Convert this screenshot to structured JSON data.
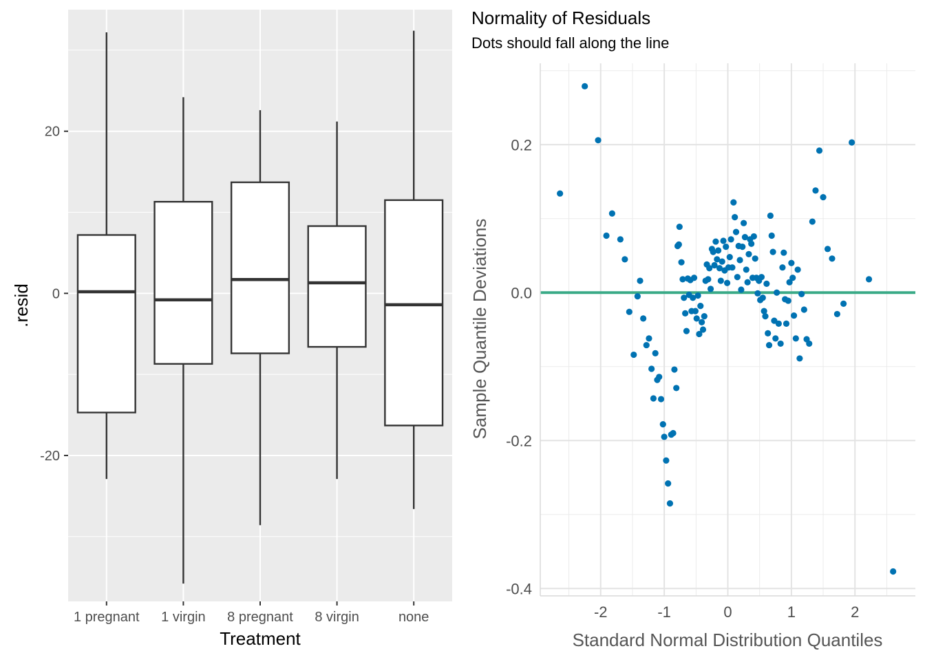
{
  "chart_data": [
    {
      "type": "boxplot",
      "xlabel": "Treatment",
      "ylabel": ".resid",
      "ylim": [
        -38,
        35
      ],
      "yticks": [
        -20,
        0,
        20
      ],
      "ytick_labels": [
        "-20",
        "0",
        "20"
      ],
      "grid": true,
      "background": "#ebebeb",
      "categories": [
        "1 pregnant",
        "1 virgin",
        "8 pregnant",
        "8 virgin",
        "none"
      ],
      "boxes": [
        {
          "min": -22.9,
          "q1": -14.7,
          "median": 0.2,
          "q3": 7.2,
          "max": 32.2
        },
        {
          "min": -35.8,
          "q1": -8.7,
          "median": -0.8,
          "q3": 11.3,
          "max": 24.2
        },
        {
          "min": -28.6,
          "q1": -7.4,
          "median": 1.7,
          "q3": 13.7,
          "max": 22.6
        },
        {
          "min": -22.9,
          "q1": -6.6,
          "median": 1.3,
          "q3": 8.3,
          "max": 21.2
        },
        {
          "min": -26.6,
          "q1": -16.3,
          "median": -1.4,
          "q3": 11.5,
          "max": 32.4
        }
      ]
    },
    {
      "type": "scatter",
      "title": "Normality of Residuals",
      "subtitle": "Dots should fall along the line",
      "xlabel": "Standard Normal Distribution Quantiles",
      "ylabel": "Sample Quantile Deviations",
      "xlim": [
        -2.95,
        2.95
      ],
      "ylim": [
        -0.41,
        0.31
      ],
      "xticks": [
        -2,
        -1,
        0,
        1,
        2
      ],
      "xtick_labels": [
        "-2",
        "-1",
        "0",
        "1",
        "2"
      ],
      "yticks": [
        -0.4,
        -0.2,
        0.0,
        0.2
      ],
      "ytick_labels": [
        "-0.4",
        "-0.2",
        "0.0",
        "0.2"
      ],
      "reference_line_y": 0,
      "colors": {
        "points": "#0072b2",
        "line": "#3aaa87"
      },
      "points": [
        [
          -2.64,
          0.134
        ],
        [
          -2.25,
          0.279
        ],
        [
          -2.04,
          0.206
        ],
        [
          -1.91,
          0.077
        ],
        [
          -1.82,
          0.107
        ],
        [
          -1.69,
          0.072
        ],
        [
          -1.62,
          0.045
        ],
        [
          -1.55,
          -0.026
        ],
        [
          -1.48,
          -0.084
        ],
        [
          -1.42,
          -0.005
        ],
        [
          -1.38,
          0.016
        ],
        [
          -1.33,
          -0.035
        ],
        [
          -1.28,
          -0.071
        ],
        [
          -1.24,
          -0.062
        ],
        [
          -1.2,
          -0.103
        ],
        [
          -1.17,
          -0.143
        ],
        [
          -1.14,
          -0.082
        ],
        [
          -1.11,
          -0.118
        ],
        [
          -1.08,
          -0.114
        ],
        [
          -1.05,
          -0.144
        ],
        [
          -1.02,
          -0.178
        ],
        [
          -1.0,
          -0.195
        ],
        [
          -0.97,
          -0.227
        ],
        [
          -0.94,
          -0.258
        ],
        [
          -0.91,
          -0.285
        ],
        [
          -0.89,
          -0.192
        ],
        [
          -0.86,
          -0.19
        ],
        [
          -0.84,
          -0.104
        ],
        [
          -0.81,
          -0.129
        ],
        [
          -0.79,
          0.063
        ],
        [
          -0.77,
          0.065
        ],
        [
          -0.76,
          0.089
        ],
        [
          -0.73,
          0.041
        ],
        [
          -0.71,
          0.018
        ],
        [
          -0.69,
          -0.007
        ],
        [
          -0.67,
          -0.028
        ],
        [
          -0.65,
          -0.052
        ],
        [
          -0.63,
          0.019
        ],
        [
          -0.61,
          -0.003
        ],
        [
          -0.59,
          0.017
        ],
        [
          -0.57,
          -0.025
        ],
        [
          -0.55,
          -0.007
        ],
        [
          -0.53,
          0.02
        ],
        [
          -0.51,
          -0.025
        ],
        [
          -0.49,
          -0.035
        ],
        [
          -0.47,
          -0.004
        ],
        [
          -0.45,
          -0.056
        ],
        [
          -0.43,
          -0.018
        ],
        [
          -0.41,
          -0.04
        ],
        [
          -0.39,
          -0.05
        ],
        [
          -0.37,
          -0.032
        ],
        [
          -0.35,
          0.016
        ],
        [
          -0.33,
          0.038
        ],
        [
          -0.31,
          0.018
        ],
        [
          -0.29,
          0.033
        ],
        [
          -0.27,
          0.005
        ],
        [
          -0.25,
          0.059
        ],
        [
          -0.23,
          0.055
        ],
        [
          -0.21,
          0.037
        ],
        [
          -0.19,
          0.069
        ],
        [
          -0.17,
          0.045
        ],
        [
          -0.15,
          0.057
        ],
        [
          -0.13,
          0.033
        ],
        [
          -0.11,
          0.016
        ],
        [
          -0.09,
          0.042
        ],
        [
          -0.07,
          0.07
        ],
        [
          -0.05,
          0.03
        ],
        [
          -0.03,
          0.062
        ],
        [
          -0.01,
          0.013
        ],
        [
          0.01,
          0.034
        ],
        [
          0.03,
          0.048
        ],
        [
          0.05,
          0.072
        ],
        [
          0.07,
          0.034
        ],
        [
          0.09,
          0.122
        ],
        [
          0.11,
          0.102
        ],
        [
          0.13,
          0.082
        ],
        [
          0.15,
          0.021
        ],
        [
          0.17,
          0.063
        ],
        [
          0.19,
          0.044
        ],
        [
          0.21,
          0.004
        ],
        [
          0.23,
          0.062
        ],
        [
          0.25,
          0.094
        ],
        [
          0.27,
          0.075
        ],
        [
          0.29,
          0.031
        ],
        [
          0.31,
          0.014
        ],
        [
          0.33,
          0.052
        ],
        [
          0.35,
          0.072
        ],
        [
          0.37,
          0.066
        ],
        [
          0.39,
          0.02
        ],
        [
          0.41,
          0.076
        ],
        [
          0.43,
          0.046
        ],
        [
          0.45,
          0.02
        ],
        [
          0.47,
          -0.001
        ],
        [
          0.49,
          0.016
        ],
        [
          0.51,
          -0.01
        ],
        [
          0.53,
          0.021
        ],
        [
          0.55,
          -0.007
        ],
        [
          0.57,
          -0.025
        ],
        [
          0.59,
          -0.032
        ],
        [
          0.61,
          0.012
        ],
        [
          0.63,
          -0.055
        ],
        [
          0.65,
          -0.071
        ],
        [
          0.67,
          0.104
        ],
        [
          0.69,
          0.077
        ],
        [
          0.71,
          0.055
        ],
        [
          0.73,
          -0.038
        ],
        [
          0.75,
          -0.062
        ],
        [
          0.77,
          -0.0
        ],
        [
          0.8,
          -0.042
        ],
        [
          0.83,
          -0.069
        ],
        [
          0.86,
          0.034
        ],
        [
          0.88,
          0.054
        ],
        [
          0.9,
          -0.009
        ],
        [
          0.92,
          -0.042
        ],
        [
          0.95,
          -0.011
        ],
        [
          0.97,
          0.014
        ],
        [
          1.0,
          0.04
        ],
        [
          1.02,
          0.02
        ],
        [
          1.04,
          -0.031
        ],
        [
          1.07,
          -0.062
        ],
        [
          1.1,
          0.031
        ],
        [
          1.13,
          -0.089
        ],
        [
          1.16,
          -0.002
        ],
        [
          1.2,
          -0.023
        ],
        [
          1.24,
          -0.063
        ],
        [
          1.28,
          -0.069
        ],
        [
          1.33,
          0.096
        ],
        [
          1.38,
          0.138
        ],
        [
          1.44,
          0.192
        ],
        [
          1.5,
          0.129
        ],
        [
          1.57,
          0.059
        ],
        [
          1.64,
          0.046
        ],
        [
          1.72,
          -0.029
        ],
        [
          1.82,
          -0.015
        ],
        [
          1.95,
          0.203
        ],
        [
          2.22,
          0.018
        ],
        [
          2.6,
          -0.377
        ]
      ]
    }
  ]
}
